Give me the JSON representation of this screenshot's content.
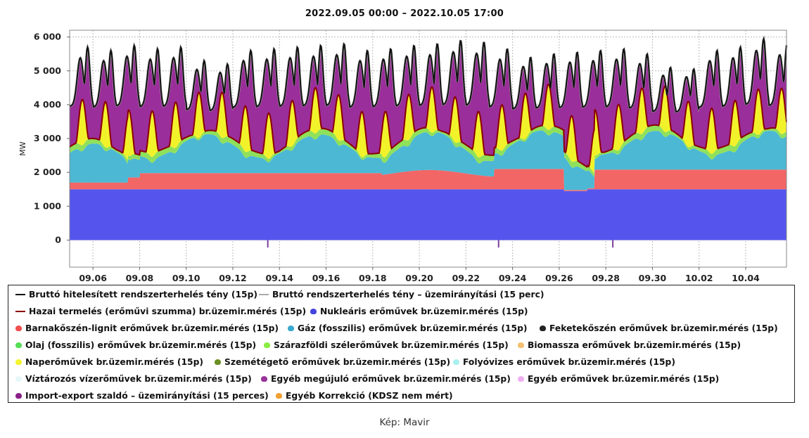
{
  "chart_data": {
    "type": "area",
    "title": "2022.09.05 00:00 – 2022.10.05 17:00",
    "ylabel": "MW",
    "ylim": [
      -800,
      6200
    ],
    "yticks": [
      0,
      1000,
      2000,
      3000,
      4000,
      5000,
      6000
    ],
    "ytick_labels": [
      "0",
      "1 000",
      "2 000",
      "3 000",
      "4 000",
      "5 000",
      "6 000"
    ],
    "xlim_days": [
      5.0,
      35.75
    ],
    "xticks": [
      "09.06",
      "09.08",
      "09.10",
      "09.12",
      "09.14",
      "09.16",
      "09.18",
      "09.20",
      "09.22",
      "09.24",
      "09.26",
      "09.28",
      "09.30",
      "10.02",
      "10.04"
    ],
    "grid": true,
    "daily_peaks_mw": [
      5700,
      5600,
      5750,
      5650,
      5700,
      5300,
      5200,
      5600,
      5650,
      5700,
      5750,
      5800,
      5600,
      5650,
      5750,
      5800,
      5900,
      5850,
      5650,
      5400,
      5500,
      5550,
      5600,
      5650,
      5500,
      5100,
      5050,
      5600,
      5700,
      5950,
      5800
    ],
    "series": [
      {
        "name": "Nukleáris erőművek br.üzemir.mérés (15p)",
        "color": "#5555ee",
        "approx_level_mw": 1500
      },
      {
        "name": "Barnakőszén-lignit erőművek br.üzemir.mérés (15p)",
        "color": "#f26666",
        "approx_level_mw": [
          150,
          600
        ]
      },
      {
        "name": "Gáz (fosszilis) erőművek br.üzemir.mérés (15p)",
        "color": "#4cb8d4",
        "approx_level_mw": [
          300,
          1200
        ]
      },
      {
        "name": "Szárazföldi szélerőművek br.üzemir.mérés (15p)",
        "color": "#8fe05a",
        "approx_level_mw": [
          30,
          300
        ]
      },
      {
        "name": "Naperőművek br.üzemir.mérés (15p)",
        "color": "#f2f22a",
        "approx_level_mw": [
          0,
          1500
        ]
      },
      {
        "name": "Import-export szaldó – üzemirányítási (15 perces)",
        "color": "#9a2e9a",
        "approx_level_mw": [
          800,
          2100
        ]
      }
    ]
  },
  "legend": [
    {
      "label": "Bruttó hitelesített rendszerterhelés tény (15p)",
      "color": "#111111",
      "kind": "line"
    },
    {
      "label": "Bruttó rendszerterhelés tény – üzemirányítási (15 perc)",
      "color": "#aaaaaa",
      "kind": "line"
    },
    {
      "label": "Hazai termelés (erőművi szumma) br.üzemir.mérés (15p)",
      "color": "#8b0000",
      "kind": "line"
    },
    {
      "label": "Nukleáris erőművek br.üzemir.mérés (15p)",
      "color": "#4444dd",
      "kind": "dot"
    },
    {
      "label": "Barnakőszén-lignit erőművek br.üzemir.mérés (15p)",
      "color": "#f04f4f",
      "kind": "dot"
    },
    {
      "label": "Gáz (fosszilis) erőművek br.üzemir.mérés (15p)",
      "color": "#3aa9cf",
      "kind": "dot"
    },
    {
      "label": "Feketekőszén erőművek br.üzemir.mérés (15p)",
      "color": "#222222",
      "kind": "dot"
    },
    {
      "label": "Olaj (fosszilis) erőművek br.üzemir.mérés (15p)",
      "color": "#55dd55",
      "kind": "dot"
    },
    {
      "label": "Szárazföldi szélerőművek br.üzemir.mérés (15p)",
      "color": "#88ee44",
      "kind": "dot"
    },
    {
      "label": "Biomassza erőművek br.üzemir.mérés (15p)",
      "color": "#f4c070",
      "kind": "dot"
    },
    {
      "label": "Naperőművek br.üzemir.mérés (15p)",
      "color": "#f4f430",
      "kind": "dot"
    },
    {
      "label": "Szemétégető erőművek br.üzemir.mérés (15p)",
      "color": "#6b8e23",
      "kind": "dot"
    },
    {
      "label": "Folyóvizes erőművek br.üzemir.mérés (15p)",
      "color": "#aaf0f0",
      "kind": "dot"
    },
    {
      "label": "Víztározós vízerőművek br.üzemir.mérés (15p)",
      "color": "#e8f8f8",
      "kind": "dot"
    },
    {
      "label": "Egyéb megújuló erőművek br.üzemir.mérés (15p)",
      "color": "#993399",
      "kind": "dot"
    },
    {
      "label": "Egyéb erőművek br.üzemir.mérés (15p)",
      "color": "#f0b0f0",
      "kind": "dot"
    },
    {
      "label": "Import-export szaldó – üzemirányítási (15 perces)",
      "color": "#882288",
      "kind": "dot"
    },
    {
      "label": "Egyéb Korrekció (KDSZ nem mért)",
      "color": "#f0a030",
      "kind": "dot"
    }
  ],
  "caption": "Kép: Mavir"
}
